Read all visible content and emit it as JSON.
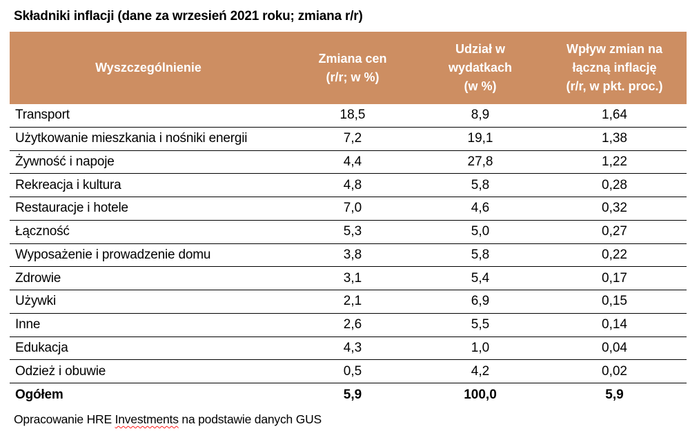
{
  "page": {
    "title": "Składniki inflacji (dane za wrzesień 2021 roku; zmiana r/r)",
    "footer": {
      "prefix": "Opracowanie HRE ",
      "spellcheck_word": "Investments",
      "suffix": " na podstawie danych GUS"
    }
  },
  "colors": {
    "header_bg": "#CD8E62",
    "header_text": "#FFFFFF",
    "row_border": "#000000",
    "spellcheck_underline": "#FF1A1A",
    "body_text": "#000000",
    "background": "#FFFFFF"
  },
  "table": {
    "columns": [
      {
        "label": "Wyszczególnienie"
      },
      {
        "label": "Zmiana cen\n(r/r; w %)"
      },
      {
        "label": "Udział w\nwydatkach\n(w %)"
      },
      {
        "label": "Wpływ zmian na\nłączną inflację\n(r/r, w pkt. proc.)"
      }
    ],
    "rows": [
      {
        "label": "Transport",
        "zmiana": "18,5",
        "udzial": "8,9",
        "wplyw": "1,64"
      },
      {
        "label": "Użytkowanie mieszkania i nośniki energii",
        "zmiana": "7,2",
        "udzial": "19,1",
        "wplyw": "1,38"
      },
      {
        "label": "Żywność i napoje",
        "zmiana": "4,4",
        "udzial": "27,8",
        "wplyw": "1,22"
      },
      {
        "label": "Rekreacja i kultura",
        "zmiana": "4,8",
        "udzial": "5,8",
        "wplyw": "0,28"
      },
      {
        "label": "Restauracje i hotele",
        "zmiana": "7,0",
        "udzial": "4,6",
        "wplyw": "0,32"
      },
      {
        "label": "Łączność",
        "zmiana": "5,3",
        "udzial": "5,0",
        "wplyw": "0,27"
      },
      {
        "label": "Wyposażenie i prowadzenie domu",
        "zmiana": "3,8",
        "udzial": "5,8",
        "wplyw": "0,22"
      },
      {
        "label": "Zdrowie",
        "zmiana": "3,1",
        "udzial": "5,4",
        "wplyw": "0,17"
      },
      {
        "label": "Używki",
        "zmiana": "2,1",
        "udzial": "6,9",
        "wplyw": "0,15"
      },
      {
        "label": "Inne",
        "zmiana": "2,6",
        "udzial": "5,5",
        "wplyw": "0,14"
      },
      {
        "label": "Edukacja",
        "zmiana": "4,3",
        "udzial": "1,0",
        "wplyw": "0,04"
      },
      {
        "label": "Odzież i obuwie",
        "zmiana": "0,5",
        "udzial": "4,2",
        "wplyw": "0,02"
      }
    ],
    "total": {
      "label": "Ogółem",
      "zmiana": "5,9",
      "udzial": "100,0",
      "wplyw": "5,9"
    }
  },
  "chart_data": {
    "type": "table",
    "title": "Składniki inflacji (dane za wrzesień 2021 roku; zmiana r/r)",
    "columns": [
      "Wyszczególnienie",
      "Zmiana cen (r/r; w %)",
      "Udział w wydatkach (w %)",
      "Wpływ zmian na łączną inflację (r/r, w pkt. proc.)"
    ],
    "rows": [
      [
        "Transport",
        18.5,
        8.9,
        1.64
      ],
      [
        "Użytkowanie mieszkania i nośniki energii",
        7.2,
        19.1,
        1.38
      ],
      [
        "Żywność i napoje",
        4.4,
        27.8,
        1.22
      ],
      [
        "Rekreacja i kultura",
        4.8,
        5.8,
        0.28
      ],
      [
        "Restauracje i hotele",
        7.0,
        4.6,
        0.32
      ],
      [
        "Łączność",
        5.3,
        5.0,
        0.27
      ],
      [
        "Wyposażenie i prowadzenie domu",
        3.8,
        5.8,
        0.22
      ],
      [
        "Zdrowie",
        3.1,
        5.4,
        0.17
      ],
      [
        "Używki",
        2.1,
        6.9,
        0.15
      ],
      [
        "Inne",
        2.6,
        5.5,
        0.14
      ],
      [
        "Edukacja",
        4.3,
        1.0,
        0.04
      ],
      [
        "Odzież i obuwie",
        0.5,
        4.2,
        0.02
      ]
    ],
    "total_row": [
      "Ogółem",
      5.9,
      100.0,
      5.9
    ],
    "source_note": "Opracowanie HRE Investments na podstawie danych GUS"
  }
}
